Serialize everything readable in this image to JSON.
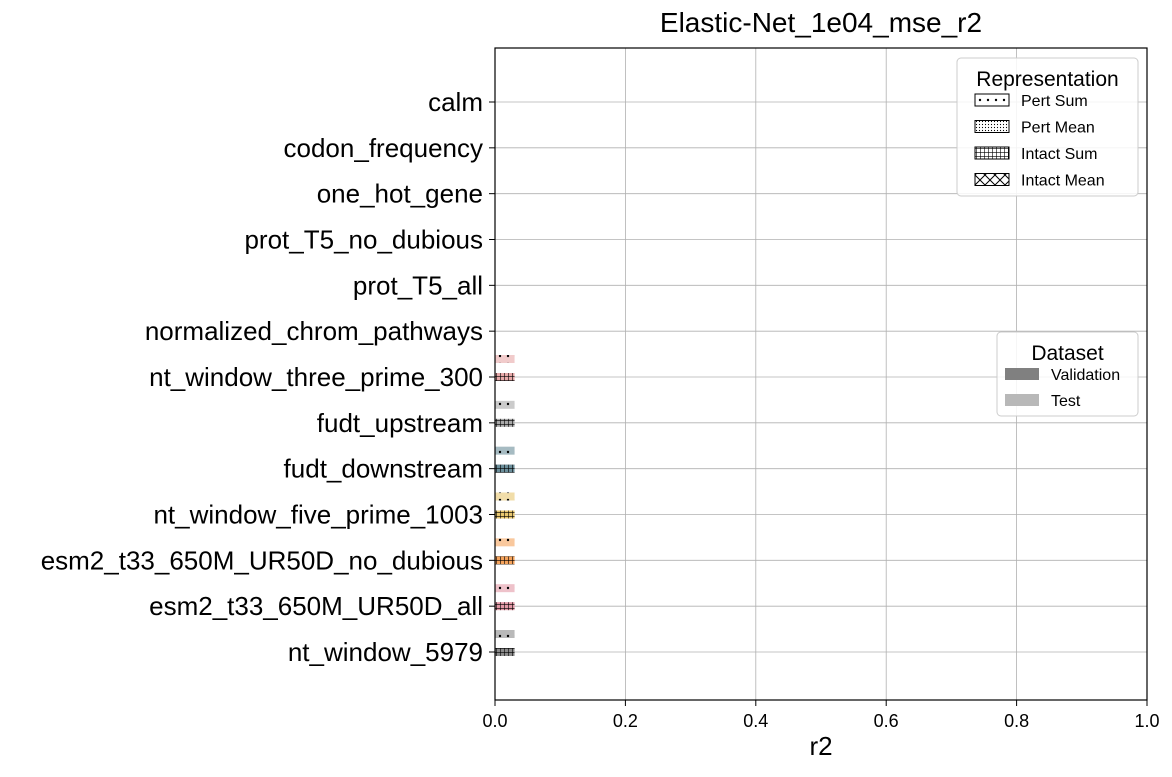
{
  "chart_data": {
    "type": "bar",
    "orientation": "horizontal",
    "title": "Elastic-Net_1e04_mse_r2",
    "xlabel": "r2",
    "ylabel": "",
    "xlim": [
      0.0,
      1.0
    ],
    "xticks": [
      "0.0",
      "0.2",
      "0.4",
      "0.6",
      "0.8",
      "1.0"
    ],
    "grid": true,
    "categories": [
      "calm",
      "codon_frequency",
      "one_hot_gene",
      "prot_T5_no_dubious",
      "prot_T5_all",
      "normalized_chrom_pathways",
      "nt_window_three_prime_300",
      "fudt_upstream",
      "fudt_downstream",
      "nt_window_five_prime_1003",
      "esm2_t33_650M_UR50D_no_dubious",
      "esm2_t33_650M_UR50D_all",
      "nt_window_5979"
    ],
    "category_colors": [
      "",
      "",
      "",
      "",
      "",
      "",
      "#e7a9a9",
      "#a9a9a9",
      "#6b8e9a",
      "#e8c770",
      "#f5a35c",
      "#e39aa7",
      "#8a8a8a"
    ],
    "series": [
      {
        "representation": "Pert Sum",
        "dataset": "Test",
        "values": [
          null,
          null,
          null,
          null,
          null,
          null,
          0.03,
          0.03,
          0.03,
          0.03,
          0.03,
          0.03,
          0.03
        ]
      },
      {
        "representation": "Intact Sum",
        "dataset": "Validation",
        "values": [
          null,
          null,
          null,
          null,
          null,
          null,
          0.03,
          0.03,
          0.03,
          0.03,
          0.03,
          0.03,
          0.03
        ]
      }
    ],
    "legends": [
      {
        "title": "Representation",
        "placement": "top-right",
        "entries": [
          {
            "label": "Pert Sum",
            "hatch": "dots"
          },
          {
            "label": "Pert Mean",
            "hatch": "fine-dots"
          },
          {
            "label": "Intact Sum",
            "hatch": "grid"
          },
          {
            "label": "Intact Mean",
            "hatch": "cross"
          }
        ]
      },
      {
        "title": "Dataset",
        "placement": "center-right",
        "entries": [
          {
            "label": "Validation",
            "color": "#808080"
          },
          {
            "label": "Test",
            "color": "#b8b8b8"
          }
        ]
      }
    ]
  }
}
